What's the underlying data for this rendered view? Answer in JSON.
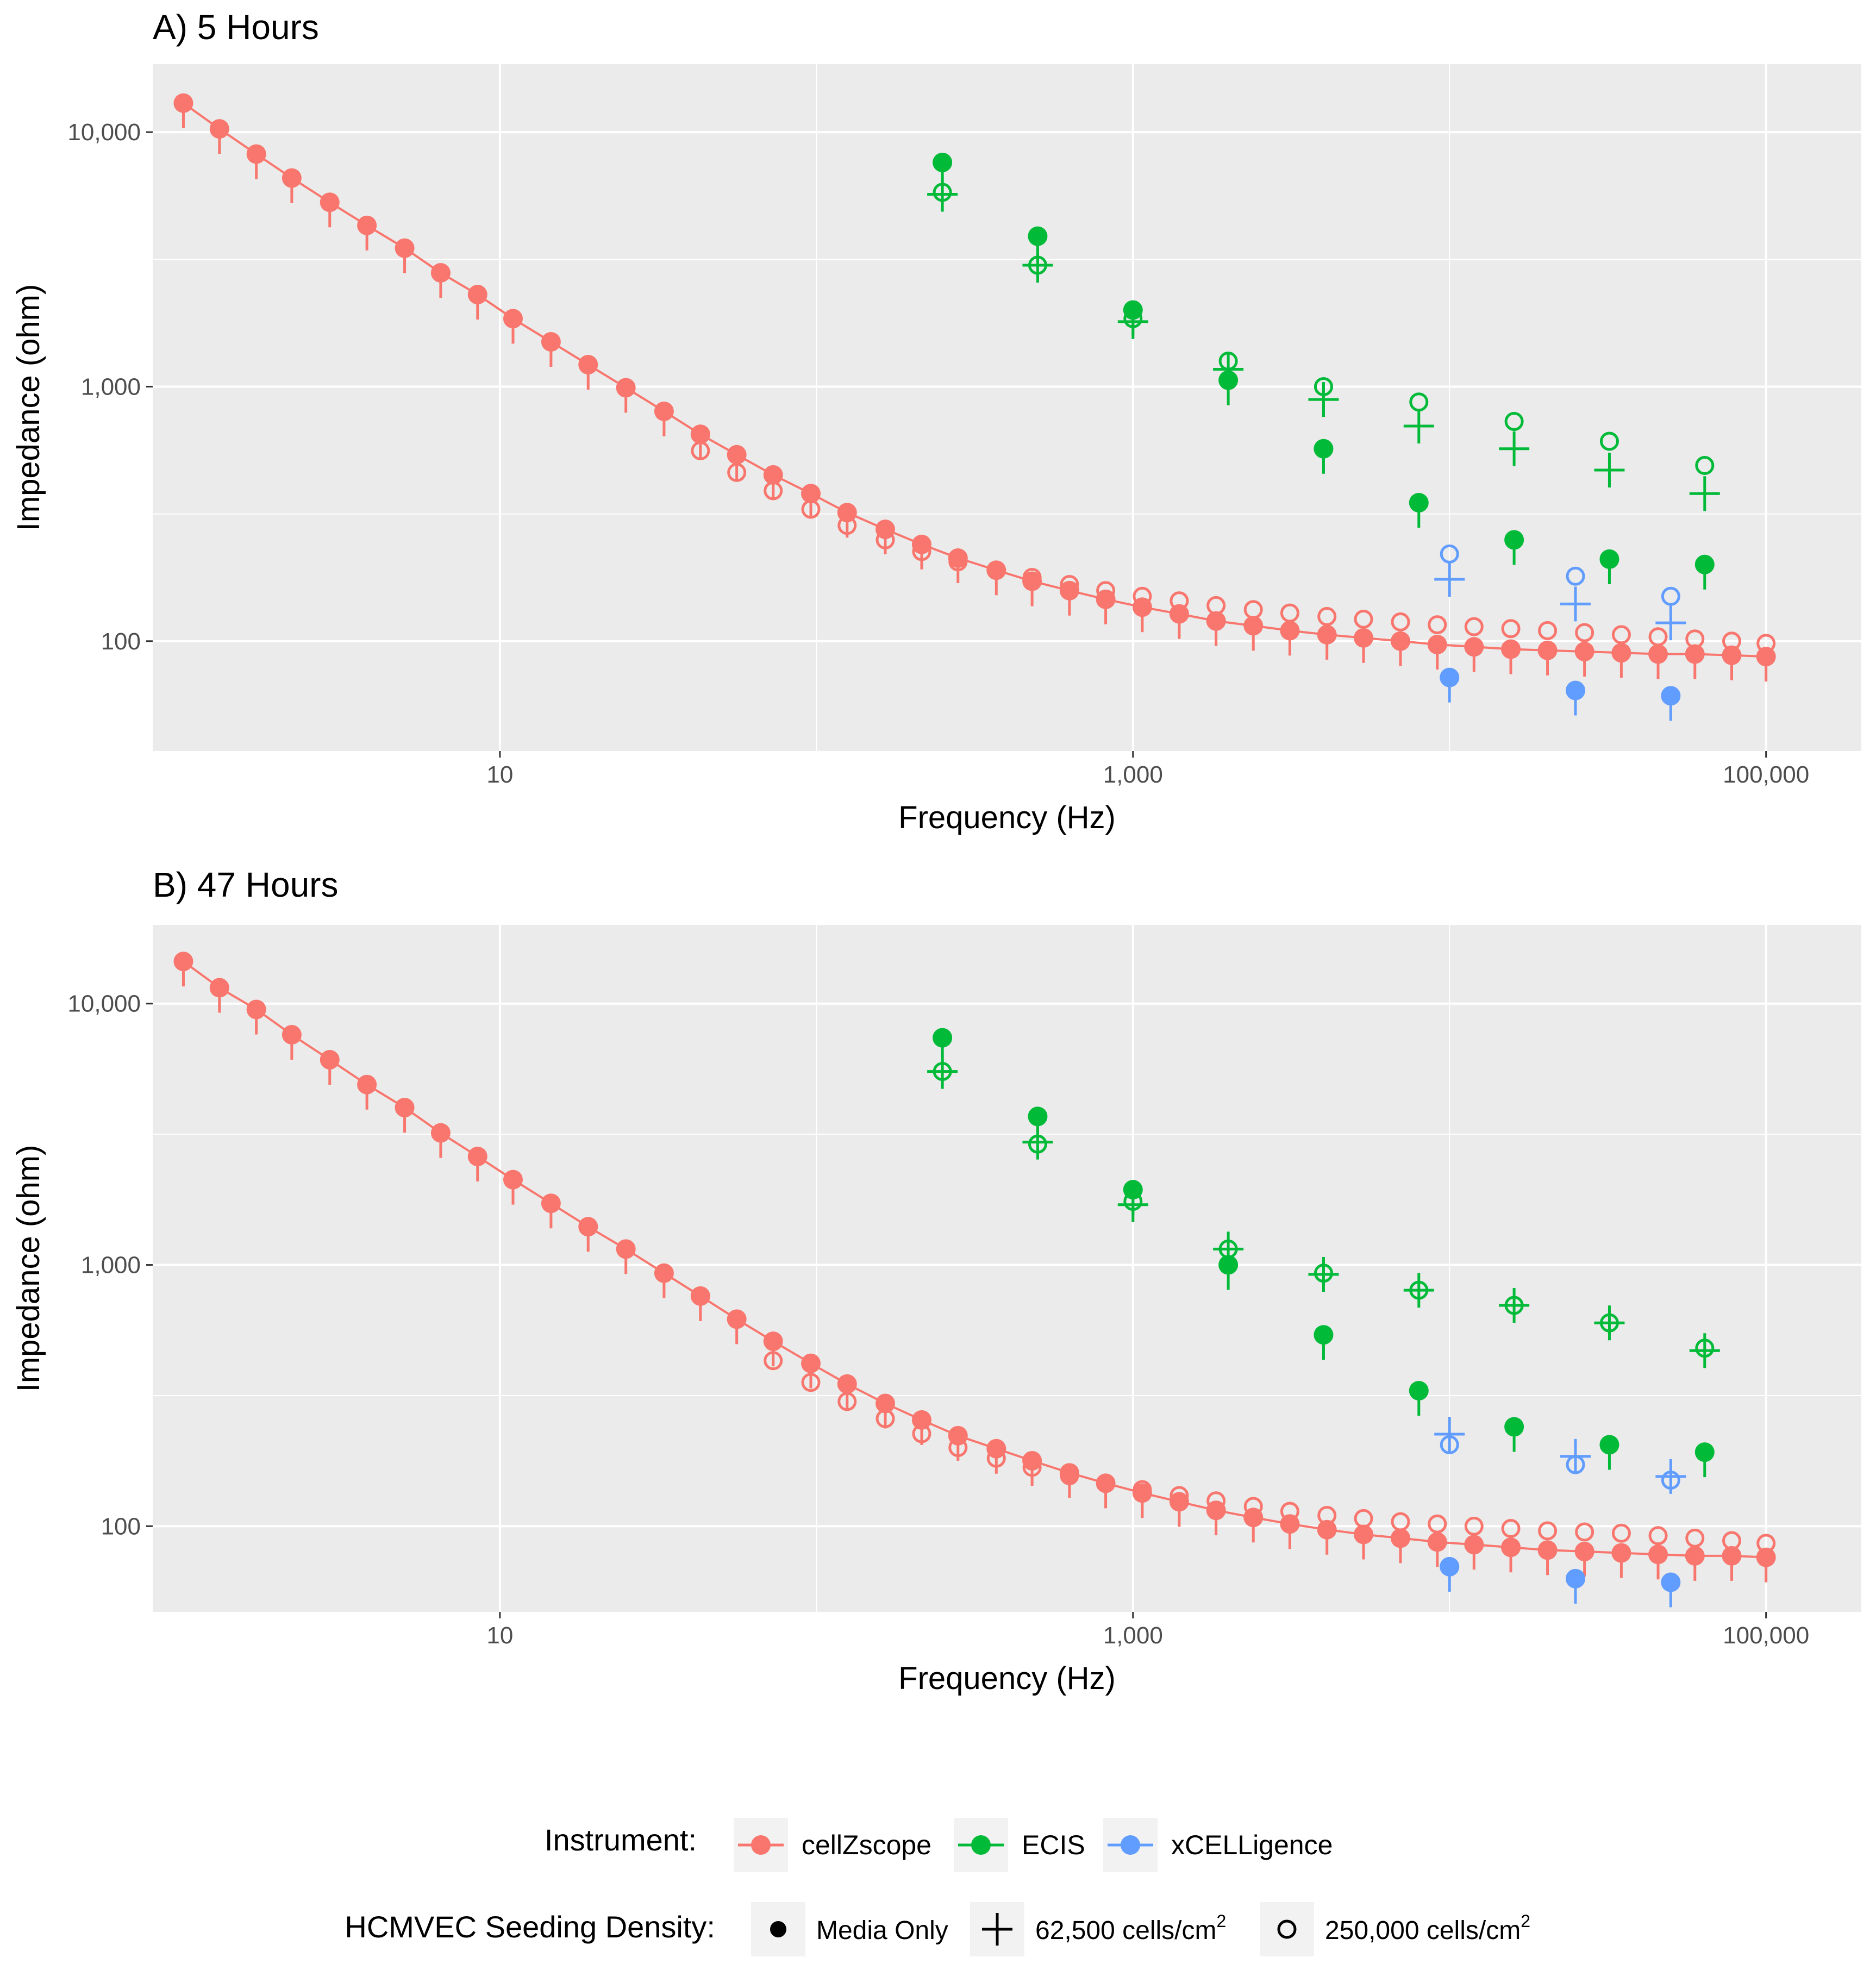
{
  "colors": {
    "cellZscope": "#F8766D",
    "ECIS": "#00BA38",
    "xCELLigence": "#619CFF",
    "panel_bg": "#EBEBEB",
    "grid": "#FFFFFF",
    "text": "#000000",
    "tick_text": "#4D4D4D"
  },
  "legend": {
    "instrument_title": "Instrument:",
    "instruments": [
      "cellZscope",
      "ECIS",
      "xCELLigence"
    ],
    "density_title": "HCMVEC Seeding Density:",
    "densities": [
      {
        "label": "Media Only",
        "sup": ""
      },
      {
        "label": "62,500 cells/cm",
        "sup": "2"
      },
      {
        "label": "250,000 cells/cm",
        "sup": "2"
      }
    ]
  },
  "chart_data": [
    {
      "type": "scatter",
      "title": "A) 5 Hours",
      "xlabel": "Frequency (Hz)",
      "ylabel": "Impedance (ohm)",
      "xscale": "log10",
      "yscale": "log10",
      "xlim": [
        0.8,
        200000
      ],
      "ylim": [
        37,
        18500
      ],
      "xticks": [
        10,
        1000,
        100000
      ],
      "xtick_labels": [
        "10",
        "1,000",
        "100,000"
      ],
      "yticks": [
        100,
        1000,
        10000
      ],
      "ytick_labels": [
        "100",
        "1,000",
        "10,000"
      ],
      "grid": true,
      "series": [
        {
          "instrument": "cellZscope",
          "density": "Media Only",
          "x": [
            1,
            1.3,
            1.7,
            2.2,
            2.9,
            3.8,
            5,
            6.5,
            8.5,
            11,
            14.5,
            19,
            25,
            33,
            43,
            56,
            73,
            96,
            125,
            165,
            215,
            280,
            370,
            480,
            630,
            820,
            1070,
            1400,
            1830,
            2400,
            3130,
            4100,
            5350,
            7000,
            9150,
            11950,
            15620,
            20400,
            26700,
            34900,
            45600,
            59600,
            77900,
            100000
          ],
          "y": [
            13000,
            10300,
            8200,
            6600,
            5300,
            4300,
            3500,
            2800,
            2300,
            1850,
            1500,
            1220,
            990,
            800,
            650,
            540,
            450,
            380,
            320,
            275,
            240,
            212,
            190,
            172,
            158,
            146,
            136,
            128,
            120,
            115,
            110,
            106,
            103,
            100,
            97,
            95,
            93,
            92,
            91,
            90,
            89,
            89,
            88,
            87
          ]
        },
        {
          "instrument": "cellZscope",
          "density": "250,000 cells/cm2",
          "x": [
            43,
            56,
            73,
            96,
            125,
            165,
            215,
            280,
            370,
            480,
            630,
            820,
            1070,
            1400,
            1830,
            2400,
            3130,
            4100,
            5350,
            7000,
            9150,
            11950,
            15620,
            20400,
            26700,
            34900,
            45600,
            59600,
            77900,
            100000
          ],
          "y": [
            560,
            460,
            390,
            330,
            285,
            250,
            225,
            205,
            190,
            178,
            167,
            158,
            150,
            144,
            138,
            133,
            129,
            125,
            122,
            119,
            116,
            114,
            112,
            110,
            108,
            106,
            104,
            102,
            100,
            98
          ]
        },
        {
          "instrument": "ECIS",
          "density": "Media Only",
          "x": [
            250,
            500,
            1000,
            2000,
            4000,
            8000,
            16000,
            32000,
            64000
          ],
          "y": [
            7600,
            3900,
            2000,
            1060,
            570,
            350,
            250,
            210,
            200
          ]
        },
        {
          "instrument": "ECIS",
          "density": "62,500 cells/cm2",
          "x": [
            250,
            500,
            1000,
            2000,
            4000,
            8000,
            16000,
            32000,
            64000
          ],
          "y": [
            5700,
            3000,
            1800,
            1170,
            890,
            700,
            570,
            470,
            380
          ]
        },
        {
          "instrument": "ECIS",
          "density": "250,000 cells/cm2",
          "x": [
            250,
            500,
            1000,
            2000,
            4000,
            8000,
            16000,
            32000,
            64000
          ],
          "y": [
            5800,
            3000,
            1850,
            1260,
            1000,
            870,
            730,
            610,
            490
          ]
        },
        {
          "instrument": "xCELLigence",
          "density": "Media Only",
          "x": [
            10000,
            25000,
            50000
          ],
          "y": [
            72,
            64,
            61
          ]
        },
        {
          "instrument": "xCELLigence",
          "density": "62,500 cells/cm2",
          "x": [
            10000,
            25000,
            50000
          ],
          "y": [
            175,
            140,
            118
          ]
        },
        {
          "instrument": "xCELLigence",
          "density": "250,000 cells/cm2",
          "x": [
            10000,
            25000,
            50000
          ],
          "y": [
            220,
            180,
            150
          ]
        }
      ]
    },
    {
      "type": "scatter",
      "title": "B) 47 Hours",
      "xlabel": "Frequency (Hz)",
      "ylabel": "Impedance (ohm)",
      "xscale": "log10",
      "yscale": "log10",
      "xlim": [
        0.8,
        200000
      ],
      "ylim": [
        47,
        20000
      ],
      "xticks": [
        10,
        1000,
        100000
      ],
      "xtick_labels": [
        "10",
        "1,000",
        "100,000"
      ],
      "yticks": [
        100,
        1000,
        10000
      ],
      "ytick_labels": [
        "100",
        "1,000",
        "10,000"
      ],
      "grid": true,
      "series": [
        {
          "instrument": "cellZscope",
          "density": "Media Only",
          "x": [
            1,
            1.3,
            1.7,
            2.2,
            2.9,
            3.8,
            5,
            6.5,
            8.5,
            11,
            14.5,
            19,
            25,
            33,
            43,
            56,
            73,
            96,
            125,
            165,
            215,
            280,
            370,
            480,
            630,
            820,
            1070,
            1400,
            1830,
            2400,
            3130,
            4100,
            5350,
            7000,
            9150,
            11950,
            15620,
            20400,
            26700,
            34900,
            45600,
            59600,
            77900,
            100000
          ],
          "y": [
            14500,
            11500,
            9500,
            7600,
            6100,
            4900,
            4000,
            3200,
            2600,
            2120,
            1720,
            1400,
            1150,
            930,
            760,
            620,
            510,
            420,
            350,
            295,
            255,
            222,
            198,
            178,
            160,
            146,
            134,
            124,
            115,
            108,
            102,
            97,
            93,
            90,
            87,
            85,
            83,
            81,
            80,
            79,
            78,
            77,
            77,
            76
          ]
        },
        {
          "instrument": "cellZscope",
          "density": "250,000 cells/cm2",
          "x": [
            73,
            96,
            125,
            165,
            215,
            280,
            370,
            480,
            630,
            820,
            1070,
            1400,
            1830,
            2400,
            3130,
            4100,
            5350,
            7000,
            9150,
            11950,
            15620,
            20400,
            26700,
            34900,
            45600,
            59600,
            77900,
            100000
          ],
          "y": [
            430,
            355,
            300,
            258,
            226,
            200,
            182,
            168,
            156,
            146,
            138,
            131,
            125,
            119,
            114,
            110,
            107,
            104,
            102,
            100,
            98,
            96,
            95,
            94,
            92,
            90,
            88,
            86
          ]
        },
        {
          "instrument": "ECIS",
          "density": "Media Only",
          "x": [
            250,
            500,
            1000,
            2000,
            4000,
            8000,
            16000,
            32000,
            64000
          ],
          "y": [
            7400,
            3700,
            1940,
            1000,
            540,
            330,
            240,
            205,
            192
          ]
        },
        {
          "instrument": "ECIS",
          "density": "62,500 cells/cm2",
          "x": [
            250,
            500,
            1000,
            2000,
            4000,
            8000,
            16000,
            32000,
            64000
          ],
          "y": [
            5500,
            2950,
            1700,
            1150,
            920,
            800,
            700,
            600,
            470
          ]
        },
        {
          "instrument": "ECIS",
          "density": "250,000 cells/cm2",
          "x": [
            250,
            500,
            1000,
            2000,
            4000,
            8000,
            16000,
            32000,
            64000
          ],
          "y": [
            5500,
            2900,
            1750,
            1150,
            930,
            800,
            700,
            600,
            480
          ]
        },
        {
          "instrument": "xCELLigence",
          "density": "Media Only",
          "x": [
            10000,
            25000,
            50000
          ],
          "y": [
            70,
            63,
            61
          ]
        },
        {
          "instrument": "xCELLigence",
          "density": "62,500 cells/cm2",
          "x": [
            10000,
            25000,
            50000
          ],
          "y": [
            225,
            185,
            155
          ]
        },
        {
          "instrument": "xCELLigence",
          "density": "250,000 cells/cm2",
          "x": [
            10000,
            25000,
            50000
          ],
          "y": [
            205,
            172,
            150
          ]
        }
      ]
    }
  ]
}
